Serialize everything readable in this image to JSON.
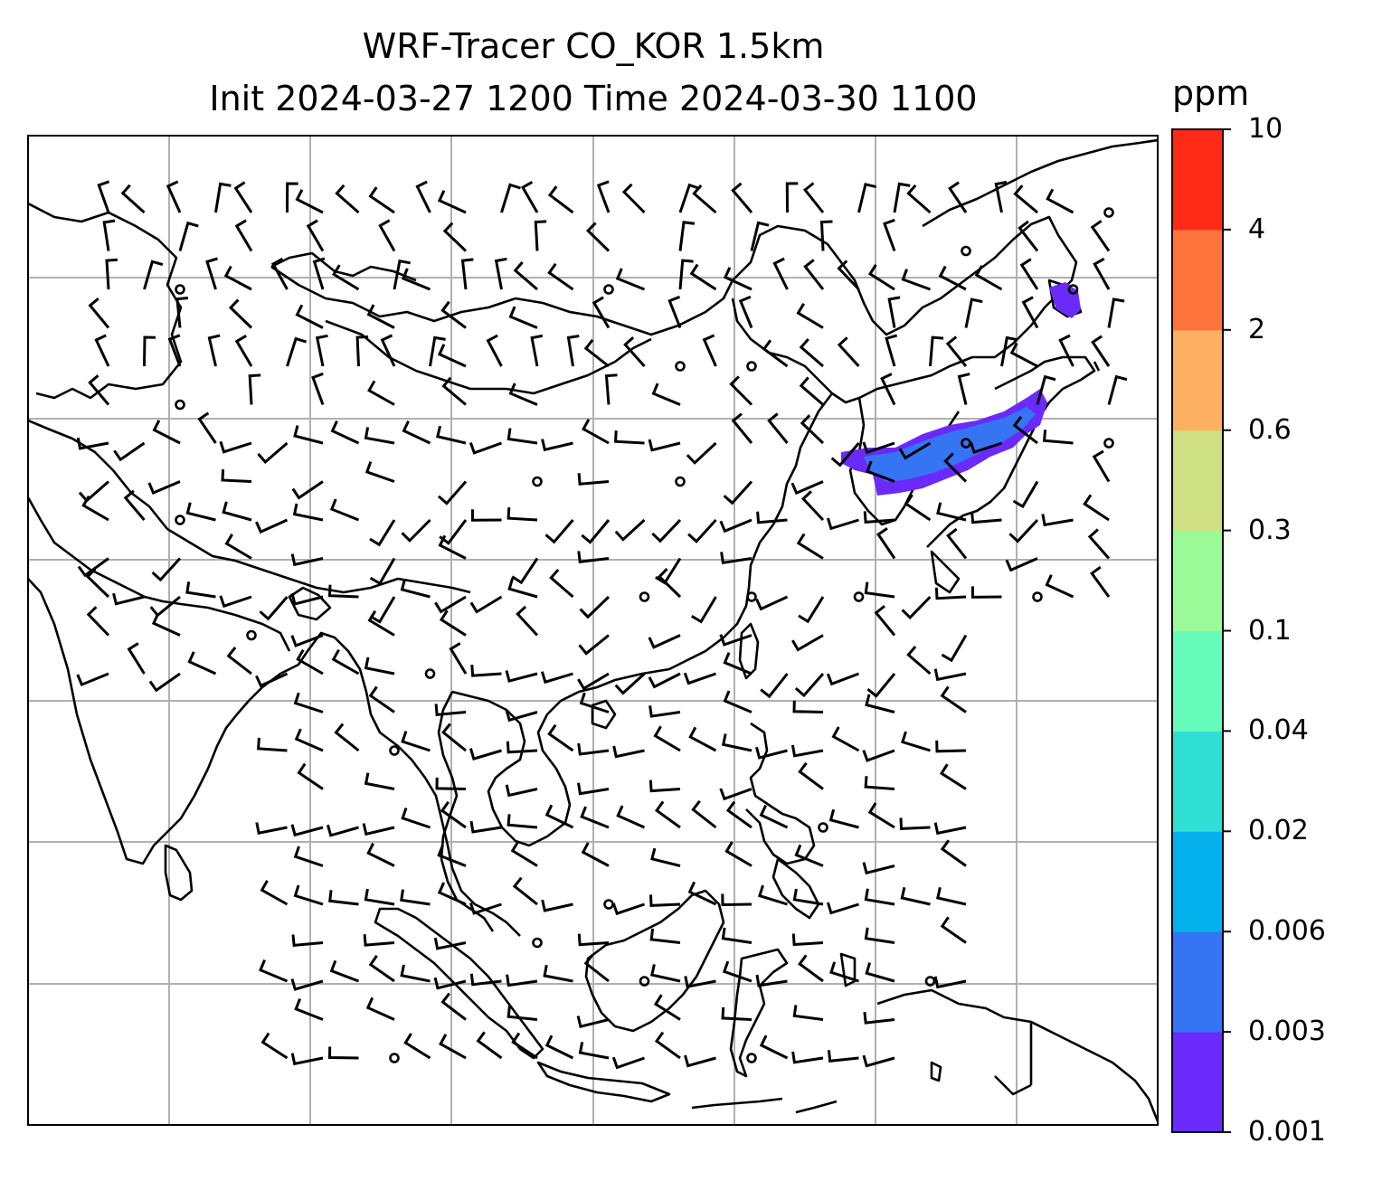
{
  "title": {
    "line1": "WRF-Tracer CO_KOR 1.5km",
    "line2": "Init 2024-03-27 1200 Time 2024-03-30 1100"
  },
  "colorbar": {
    "unit": "ppm",
    "levels": [
      "0.001",
      "0.003",
      "0.006",
      "0.02",
      "0.04",
      "0.1",
      "0.3",
      "0.6",
      "2",
      "4",
      "10"
    ],
    "colors": [
      "#6a2afa",
      "#3574f2",
      "#04b1ed",
      "#2fdfd3",
      "#66fabb",
      "#9bfa97",
      "#cee081",
      "#fdb061",
      "#ff733d",
      "#ff2a15"
    ]
  },
  "map": {
    "gridlines": true,
    "coastline_color": "#000000",
    "grid_color": "#b0b0b0",
    "plume_colors": [
      "#6a2afa",
      "#3574f2"
    ]
  }
}
